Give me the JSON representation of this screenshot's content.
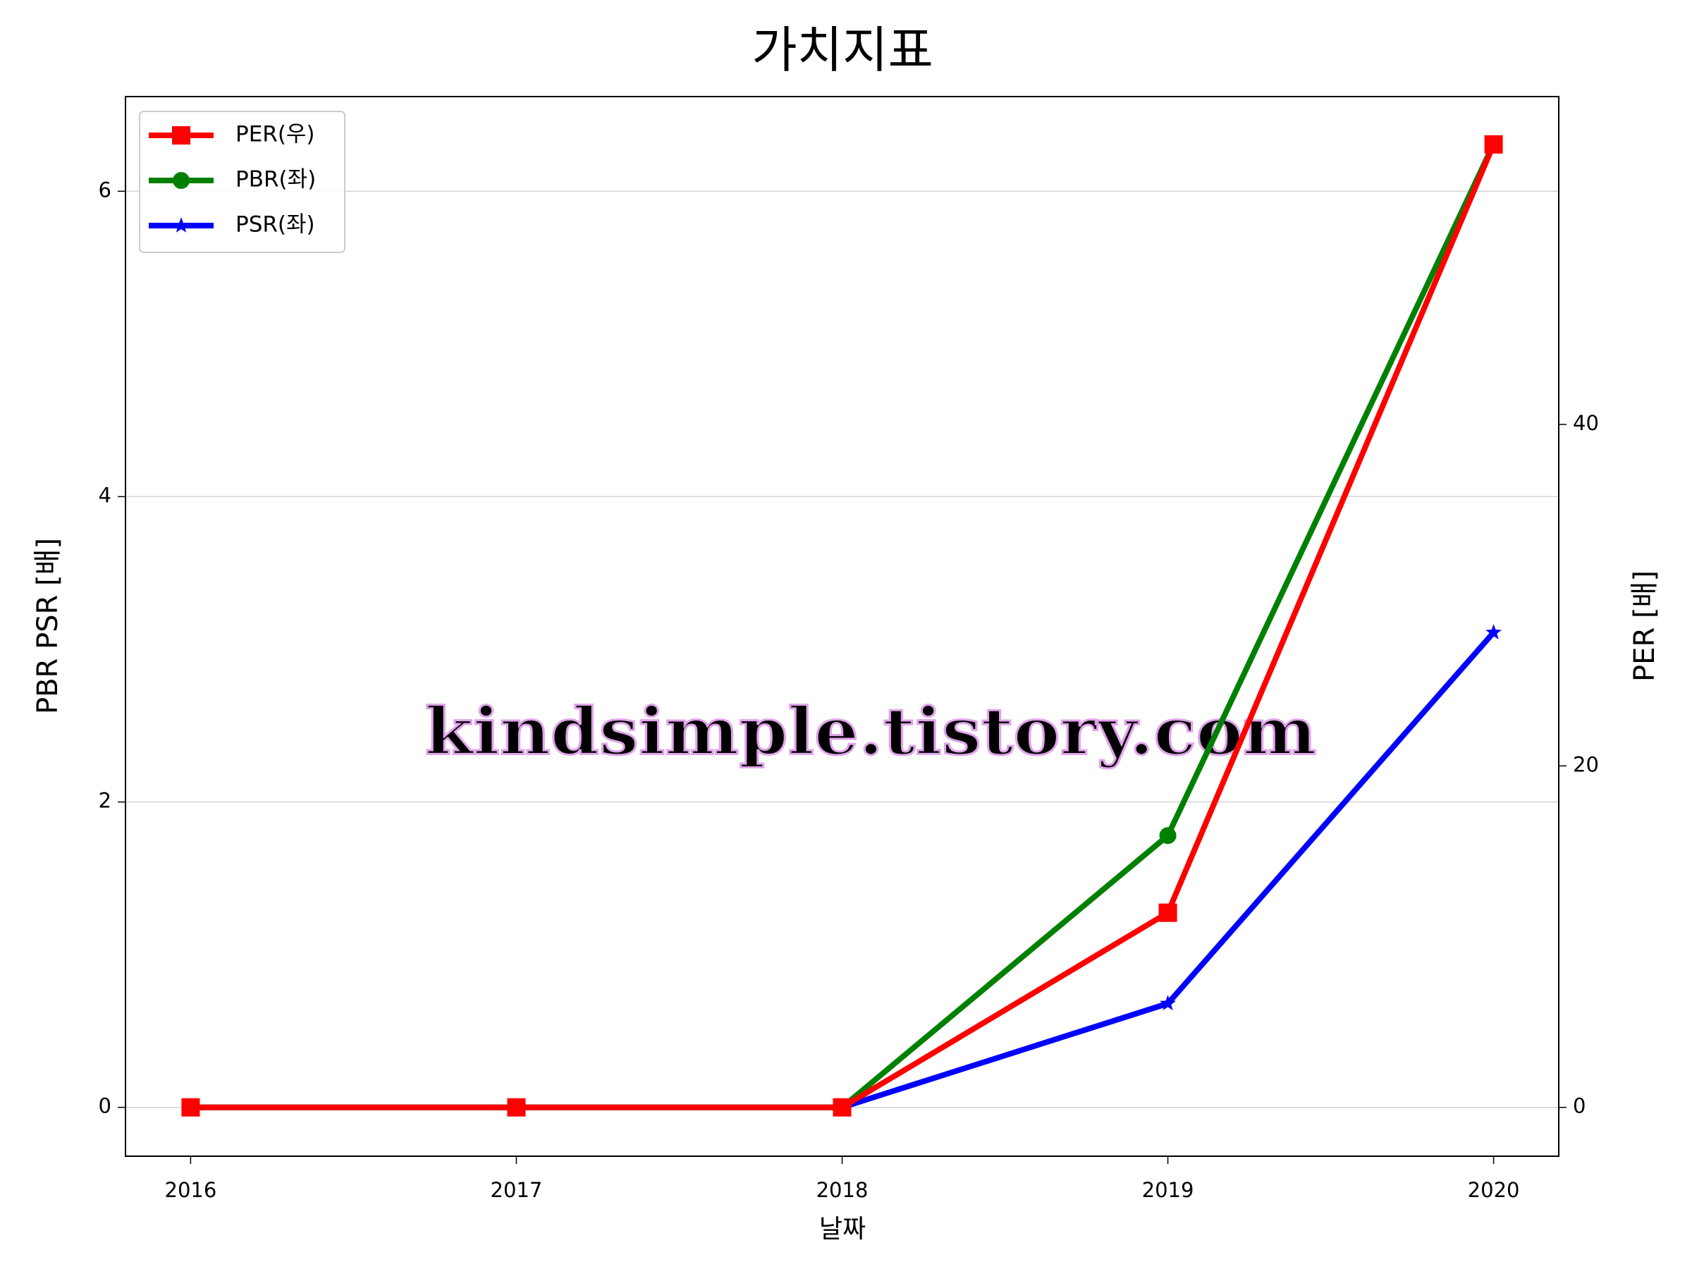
{
  "chart_data": {
    "type": "line",
    "title": "가치지표",
    "xlabel": "날짜",
    "ylabel": "PBR PSR [배]",
    "y2label": "PER [배]",
    "ylabel_color": "#008000",
    "y2label_color": "#ff0000",
    "watermark": "kindsimple.tistory.com",
    "x": [
      2016,
      2017,
      2018,
      2019,
      2020
    ],
    "xlim": [
      2015.8,
      2020.2
    ],
    "xticks": [
      2016,
      2017,
      2018,
      2019,
      2020
    ],
    "ylim": [
      -0.32,
      6.62
    ],
    "yticks": [
      0,
      2,
      4,
      6
    ],
    "y2lim": [
      -2.86,
      59.2
    ],
    "y2ticks": [
      0,
      20,
      40
    ],
    "grid": true,
    "legend": "upper left",
    "series": [
      {
        "name": "PER(우)",
        "color": "#ff0000",
        "marker": "square",
        "axis": "y2",
        "values": [
          0,
          0,
          0,
          11.4,
          56.4
        ]
      },
      {
        "name": "PBR(좌)",
        "color": "#008000",
        "marker": "circle",
        "values": [
          0,
          0,
          0,
          1.78,
          6.31
        ]
      },
      {
        "name": "PSR(좌)",
        "color": "#0000ff",
        "marker": "star",
        "values": [
          0,
          0,
          0,
          0.68,
          3.11
        ]
      }
    ]
  }
}
